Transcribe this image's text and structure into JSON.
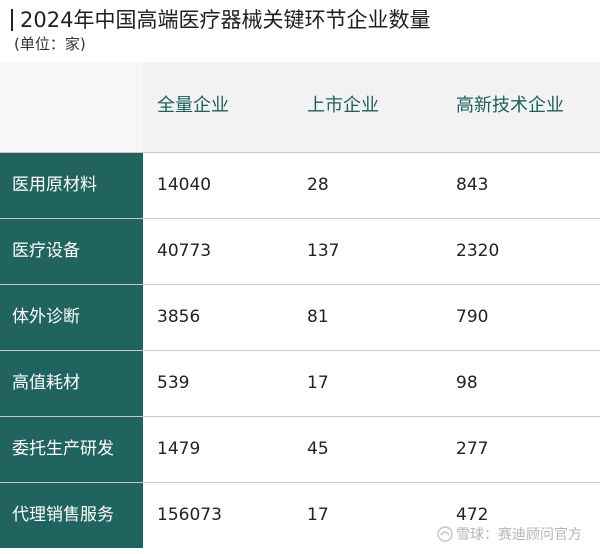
{
  "title": "2024年中国高端医疗器械关键环节企业数量",
  "unit": "(单位：家)",
  "columns": [
    "全量企业",
    "上市企业",
    "高新技术企业"
  ],
  "rows": [
    {
      "label": "医用原材料",
      "values": [
        "14040",
        "28",
        "843"
      ]
    },
    {
      "label": "医疗设备",
      "values": [
        "40773",
        "137",
        "2320"
      ]
    },
    {
      "label": "体外诊断",
      "values": [
        "3856",
        "81",
        "790"
      ]
    },
    {
      "label": "高值耗材",
      "values": [
        "539",
        "17",
        "98"
      ]
    },
    {
      "label": "委托生产研发",
      "values": [
        "1479",
        "45",
        "277"
      ]
    },
    {
      "label": "代理销售服务",
      "values": [
        "156073",
        "17",
        "472"
      ]
    }
  ],
  "watermark": "雪球：赛迪顾问官方",
  "colors": {
    "accent": "#21635f",
    "header_text": "#1f5f5b",
    "header_bg": "#f2f2f2"
  }
}
